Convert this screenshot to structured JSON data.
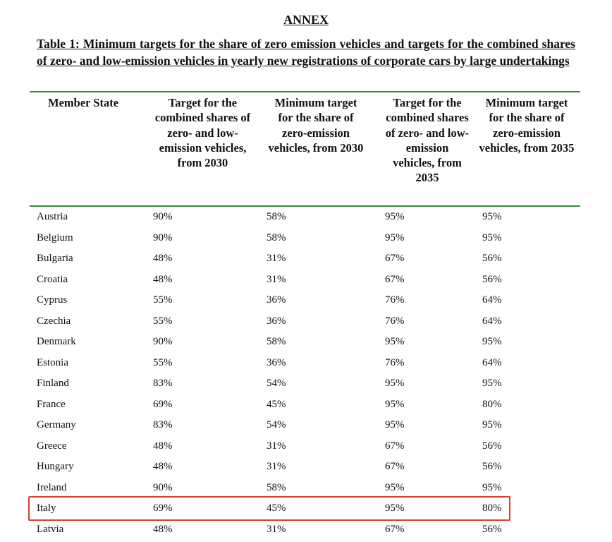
{
  "annex": "ANNEX",
  "caption": "Table 1: Minimum targets for the share of zero emission vehicles and targets for the combined shares of zero- and low-emission vehicles in yearly new registrations of corporate cars by large undertakings",
  "headers": [
    "Member State",
    "Target for the combined shares of zero- and low-emission vehicles, from 2030",
    "Minimum target for the share of zero-emission vehicles, from 2030",
    "Target for the combined shares of zero- and low-emission vehicles, from 2035",
    "Minimum target for the share of zero-emission vehicles, from 2035"
  ],
  "rows": [
    [
      "Austria",
      "90%",
      "58%",
      "95%",
      "95%"
    ],
    [
      "Belgium",
      "90%",
      "58%",
      "95%",
      "95%"
    ],
    [
      "Bulgaria",
      "48%",
      "31%",
      "67%",
      "56%"
    ],
    [
      "Croatia",
      "48%",
      "31%",
      "67%",
      "56%"
    ],
    [
      "Cyprus",
      "55%",
      "36%",
      "76%",
      "64%"
    ],
    [
      "Czechia",
      "55%",
      "36%",
      "76%",
      "64%"
    ],
    [
      "Denmark",
      "90%",
      "58%",
      "95%",
      "95%"
    ],
    [
      "Estonia",
      "55%",
      "36%",
      "76%",
      "64%"
    ],
    [
      "Finland",
      "83%",
      "54%",
      "95%",
      "95%"
    ],
    [
      "France",
      "69%",
      "45%",
      "95%",
      "80%"
    ],
    [
      "Germany",
      "83%",
      "54%",
      "95%",
      "95%"
    ],
    [
      "Greece",
      "48%",
      "31%",
      "67%",
      "56%"
    ],
    [
      "Hungary",
      "48%",
      "31%",
      "67%",
      "56%"
    ],
    [
      "Ireland",
      "90%",
      "58%",
      "95%",
      "95%"
    ],
    [
      "Italy",
      "69%",
      "45%",
      "95%",
      "80%"
    ],
    [
      "Latvia",
      "48%",
      "31%",
      "67%",
      "56%"
    ]
  ],
  "highlighted_row": "Italy",
  "colors": {
    "rule": "#3d8a3a",
    "highlight": "#d9412e"
  }
}
